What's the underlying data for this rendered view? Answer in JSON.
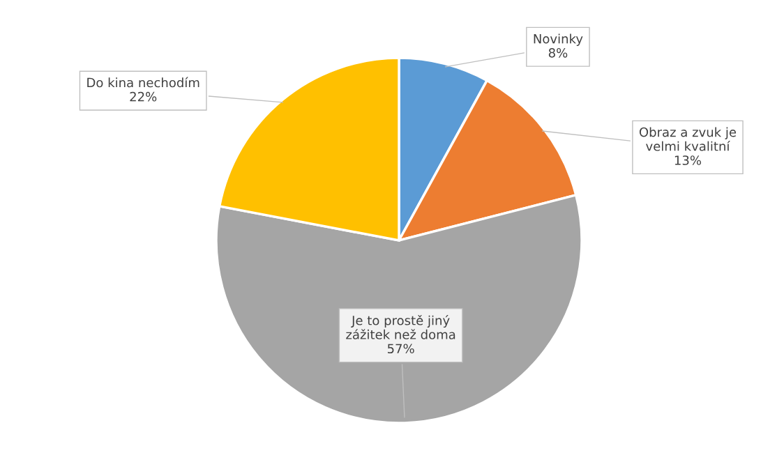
{
  "chart_data": {
    "type": "pie",
    "categories": [
      "Novinky",
      "Obraz a zvuk je\nvelmi kvalitní",
      "Je to prostě jiný\nzážitek než doma",
      "Do kina nechodím"
    ],
    "values": [
      8,
      13,
      57,
      22
    ],
    "value_labels": [
      "8%",
      "13%",
      "57%",
      "22%"
    ],
    "colors": [
      "#5b9bd5",
      "#ed7d31",
      "#a5a5a5",
      "#ffc000"
    ],
    "legend": false
  }
}
